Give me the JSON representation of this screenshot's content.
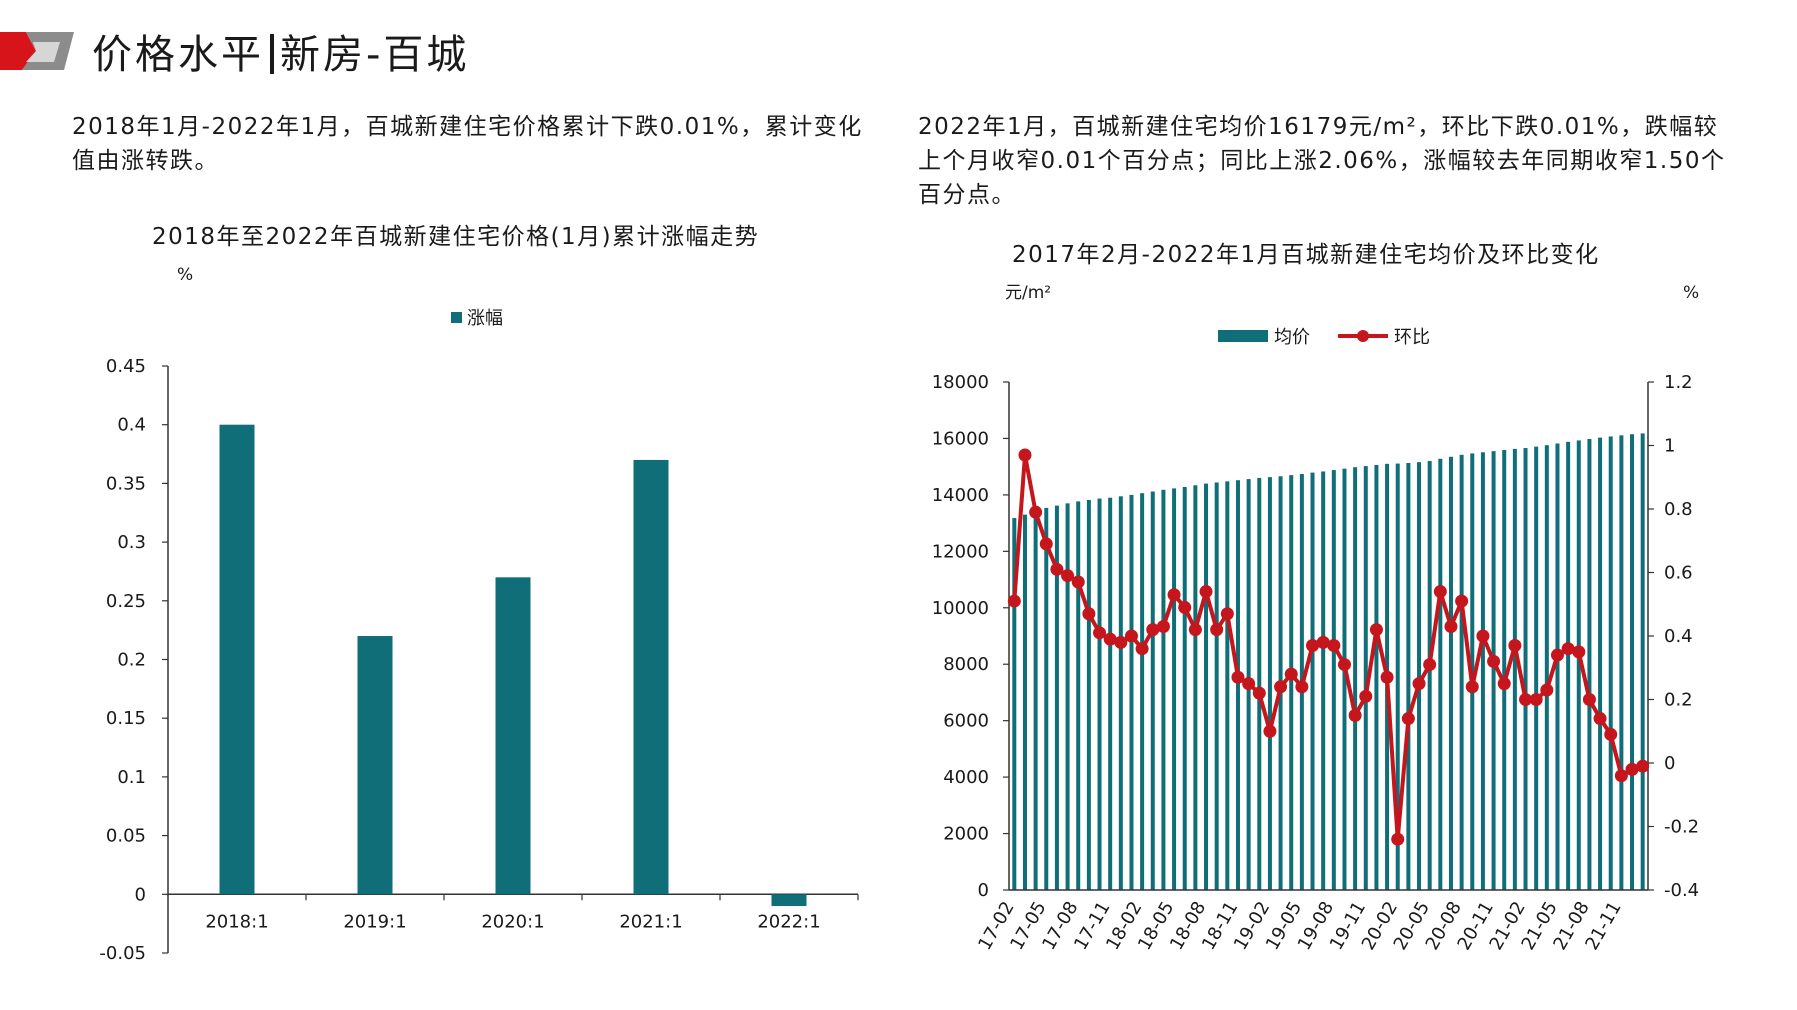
{
  "header": {
    "title_left": "价格水平",
    "title_right": "新房-百城",
    "brand_colors": {
      "red": "#d7141a",
      "gray": "#8c8c8c"
    }
  },
  "notes": {
    "left": "2018年1月-2022年1月，百城新建住宅价格累计下跌0.01%，累计变化值由涨转跌。",
    "right": "2022年1月，百城新建住宅均价16179元/m²，环比下跌0.01%，跌幅较上个月收窄0.01个百分点；同比上涨2.06%，涨幅较去年同期收窄1.50个百分点。"
  },
  "chart_data": [
    {
      "type": "bar",
      "title": "2018年至2022年百城新建住宅价格(1月)累计涨幅走势",
      "ylabel": "%",
      "legend_position": "top-center",
      "ylim": [
        -0.05,
        0.45
      ],
      "yticks": [
        "0.45",
        "0.4",
        "0.35",
        "0.3",
        "0.25",
        "0.2",
        "0.15",
        "0.1",
        "0.05",
        "0",
        "-0.05"
      ],
      "categories": [
        "2018:1",
        "2019:1",
        "2020:1",
        "2021:1",
        "2022:1"
      ],
      "series": [
        {
          "name": "涨幅",
          "color": "#0f6e78",
          "values": [
            0.4,
            0.22,
            0.27,
            0.37,
            -0.01
          ]
        }
      ]
    },
    {
      "type": "bar+line",
      "title": "2017年2月-2022年1月百城新建住宅均价及环比变化",
      "left_axis": {
        "label": "元/m²",
        "ylim": [
          0,
          18000
        ],
        "ticks": [
          "18000",
          "16000",
          "14000",
          "12000",
          "10000",
          "8000",
          "6000",
          "4000",
          "2000",
          "0"
        ]
      },
      "right_axis": {
        "label": "%",
        "ylim": [
          -0.4,
          1.2
        ],
        "ticks": [
          "1.2",
          "1",
          "0.8",
          "0.6",
          "0.4",
          "0.2",
          "0",
          "-0.2",
          "-0.4"
        ]
      },
      "legend_position": "top-center",
      "x_tick_labels": [
        "17-02",
        "17-05",
        "17-08",
        "17-11",
        "18-02",
        "18-05",
        "18-08",
        "18-11",
        "19-02",
        "19-05",
        "19-08",
        "19-11",
        "20-02",
        "20-05",
        "20-08",
        "20-11",
        "21-02",
        "21-05",
        "21-08",
        "21-11"
      ],
      "x": [
        "17-02",
        "17-03",
        "17-04",
        "17-05",
        "17-06",
        "17-07",
        "17-08",
        "17-09",
        "17-10",
        "17-11",
        "17-12",
        "18-01",
        "18-02",
        "18-03",
        "18-04",
        "18-05",
        "18-06",
        "18-07",
        "18-08",
        "18-09",
        "18-10",
        "18-11",
        "18-12",
        "19-01",
        "19-02",
        "19-03",
        "19-04",
        "19-05",
        "19-06",
        "19-07",
        "19-08",
        "19-09",
        "19-10",
        "19-11",
        "19-12",
        "20-01",
        "20-02",
        "20-03",
        "20-04",
        "20-05",
        "20-06",
        "20-07",
        "20-08",
        "20-09",
        "20-10",
        "20-11",
        "20-12",
        "21-01",
        "21-02",
        "21-03",
        "21-04",
        "21-05",
        "21-06",
        "21-07",
        "21-08",
        "21-09",
        "21-10",
        "21-11",
        "21-12",
        "22-01"
      ],
      "series": [
        {
          "name": "均价",
          "axis": "left",
          "kind": "bar",
          "color": "#0f6e78",
          "values": [
            13180,
            13300,
            13420,
            13540,
            13620,
            13700,
            13770,
            13820,
            13870,
            13900,
            13950,
            14000,
            14060,
            14120,
            14180,
            14230,
            14280,
            14340,
            14400,
            14440,
            14480,
            14520,
            14560,
            14600,
            14630,
            14660,
            14700,
            14740,
            14790,
            14830,
            14880,
            14930,
            14980,
            15020,
            15060,
            15100,
            15110,
            15130,
            15160,
            15200,
            15280,
            15350,
            15420,
            15470,
            15510,
            15550,
            15590,
            15630,
            15660,
            15710,
            15760,
            15820,
            15880,
            15930,
            15980,
            16030,
            16070,
            16110,
            16150,
            16179
          ]
        },
        {
          "name": "环比",
          "axis": "right",
          "kind": "line",
          "color": "#c4161c",
          "values": [
            0.51,
            0.97,
            0.79,
            0.69,
            0.61,
            0.59,
            0.57,
            0.47,
            0.41,
            0.39,
            0.38,
            0.4,
            0.36,
            0.42,
            0.43,
            0.53,
            0.49,
            0.42,
            0.54,
            0.42,
            0.47,
            0.27,
            0.25,
            0.22,
            0.1,
            0.24,
            0.28,
            0.24,
            0.37,
            0.38,
            0.37,
            0.31,
            0.15,
            0.21,
            0.42,
            0.27,
            -0.24,
            0.14,
            0.25,
            0.31,
            0.54,
            0.43,
            0.51,
            0.24,
            0.4,
            0.32,
            0.25,
            0.37,
            0.2,
            0.2,
            0.23,
            0.34,
            0.36,
            0.35,
            0.2,
            0.14,
            0.09,
            -0.04,
            -0.02,
            -0.01
          ]
        }
      ]
    }
  ]
}
